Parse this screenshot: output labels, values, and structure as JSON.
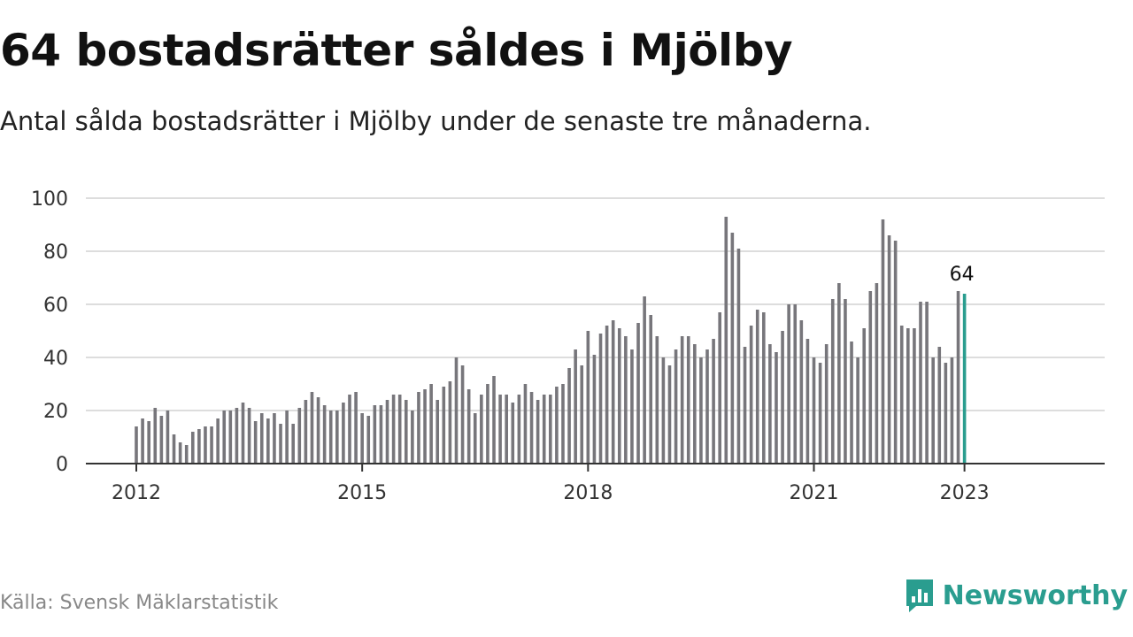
{
  "header": {
    "title": "64 bostadsrätter såldes i Mjölby",
    "subtitle": "Antal sålda bostadsrätter i Mjölby under de senaste tre månaderna."
  },
  "footer": {
    "source": "Källa: Svensk Mäklarstatistik",
    "brand_name": "Newsworthy",
    "brand_icon": "bar-chart-speech-bubble-icon"
  },
  "colors": {
    "bar": "#77767b",
    "highlight": "#2a9d8f",
    "grid": "#dddddd",
    "axis": "#333333"
  },
  "chart_data": {
    "type": "bar",
    "title": "64 bostadsrätter såldes i Mjölby",
    "subtitle": "Antal sålda bostadsrätter i Mjölby under de senaste tre månaderna.",
    "xlabel": "",
    "ylabel": "",
    "ylim": [
      0,
      100
    ],
    "yticks": [
      0,
      20,
      40,
      60,
      80,
      100
    ],
    "xticks": [
      "2012",
      "2015",
      "2018",
      "2021",
      "2023"
    ],
    "grid": true,
    "start": "2012-01",
    "end": "2023-01",
    "values": [
      14,
      17,
      16,
      21,
      18,
      20,
      11,
      8,
      7,
      12,
      13,
      14,
      14,
      17,
      20,
      20,
      21,
      23,
      21,
      16,
      19,
      17,
      19,
      15,
      20,
      15,
      21,
      24,
      27,
      25,
      22,
      20,
      20,
      23,
      26,
      27,
      19,
      18,
      22,
      22,
      24,
      26,
      26,
      24,
      20,
      27,
      28,
      30,
      24,
      29,
      31,
      40,
      37,
      28,
      19,
      26,
      30,
      33,
      26,
      26,
      23,
      26,
      30,
      27,
      24,
      26,
      26,
      29,
      30,
      36,
      43,
      37,
      50,
      41,
      49,
      52,
      54,
      51,
      48,
      43,
      53,
      63,
      56,
      48,
      40,
      37,
      43,
      48,
      48,
      45,
      40,
      43,
      47,
      57,
      93,
      87,
      81,
      44,
      52,
      58,
      57,
      45,
      42,
      50,
      60,
      60,
      54,
      47,
      40,
      38,
      45,
      62,
      68,
      62,
      46,
      40,
      51,
      65,
      68,
      92,
      86,
      84,
      52,
      51,
      51,
      61,
      61,
      40,
      44,
      38,
      40,
      65,
      64
    ],
    "highlight_label": "64"
  }
}
